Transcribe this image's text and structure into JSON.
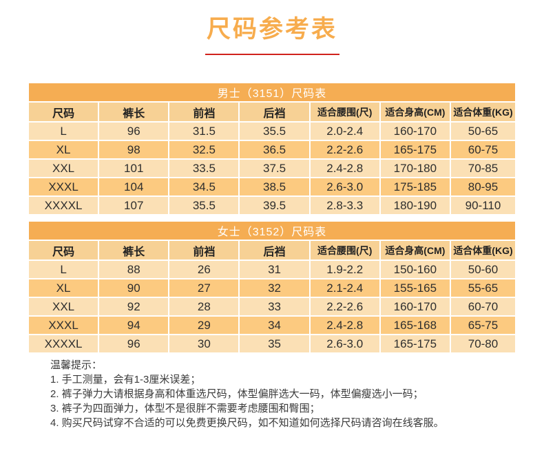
{
  "page": {
    "title": "尺码参考表"
  },
  "colors": {
    "title_text": "#F7AC4D",
    "title_underline": "#D0211C",
    "table_title_bar_bg": "#F5AD53",
    "table_title_bar_text": "#FFFFFF",
    "column_header_bg": "#F7D195",
    "row_light_bg": "#FBE0B5",
    "row_dark_bg": "#FCCA80",
    "body_text": "#2E2E2E"
  },
  "tables": {
    "columns": [
      "尺码",
      "裤长",
      "前裆",
      "后裆",
      "适合腰围(尺)",
      "适合身高(CM)",
      "适合体重(KG)"
    ],
    "men": {
      "title": "男士（3151）尺码表",
      "rows": [
        [
          "L",
          "96",
          "31.5",
          "35.5",
          "2.0-2.4",
          "160-170",
          "50-65"
        ],
        [
          "XL",
          "98",
          "32.5",
          "36.5",
          "2.2-2.6",
          "165-175",
          "60-75"
        ],
        [
          "XXL",
          "101",
          "33.5",
          "37.5",
          "2.4-2.8",
          "170-180",
          "70-85"
        ],
        [
          "XXXL",
          "104",
          "34.5",
          "38.5",
          "2.6-3.0",
          "175-185",
          "80-95"
        ],
        [
          "XXXXL",
          "107",
          "35.5",
          "39.5",
          "2.8-3.3",
          "180-190",
          "90-110"
        ]
      ]
    },
    "women": {
      "title": "女士（3152）尺码表",
      "rows": [
        [
          "L",
          "88",
          "26",
          "31",
          "1.9-2.2",
          "150-160",
          "50-60"
        ],
        [
          "XL",
          "90",
          "27",
          "32",
          "2.1-2.4",
          "155-165",
          "55-65"
        ],
        [
          "XXL",
          "92",
          "28",
          "33",
          "2.2-2.6",
          "160-170",
          "60-70"
        ],
        [
          "XXXL",
          "94",
          "29",
          "34",
          "2.4-2.8",
          "165-168",
          "65-75"
        ],
        [
          "XXXXL",
          "96",
          "30",
          "35",
          "2.6-3.0",
          "165-175",
          "70-80"
        ]
      ]
    }
  },
  "notes": {
    "heading": "温馨提示：",
    "items": [
      "1. 手工测量，会有1-3厘米误差；",
      "2. 裤子弹力大请根据身高和体重选尺码，体型偏胖选大一码，体型偏瘦选小一码；",
      "3. 裤子为四面弹力，体型不是很胖不需要考虑腰围和臀围；",
      "4. 购买尺码试穿不合适的可以免费更换尺码，如不知道如何选择尺码请咨询在线客服。"
    ]
  }
}
